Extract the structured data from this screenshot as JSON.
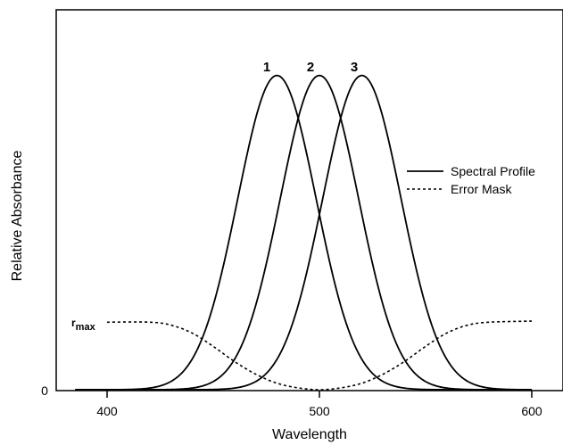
{
  "chart_data": {
    "type": "line",
    "xlabel": "Wavelength",
    "ylabel": "Relative Absorbance",
    "xlim": [
      380,
      630
    ],
    "ylim": [
      0,
      1.0
    ],
    "xticks": [
      400,
      500,
      600
    ],
    "xtick_labels": [
      "400",
      "500",
      "600"
    ],
    "yticks": [
      0
    ],
    "ytick_labels": [
      "0"
    ],
    "grid": false,
    "legend_position": "right",
    "legend": [
      {
        "label": "Spectral Profile",
        "style": "solid"
      },
      {
        "label": "Error Mask",
        "style": "dotted"
      }
    ],
    "series": [
      {
        "name": "1",
        "style": "solid",
        "peak_x": 480,
        "peak_y": 0.87,
        "sigma": 18.5,
        "x_range": [
          385,
          600
        ]
      },
      {
        "name": "2",
        "style": "solid",
        "peak_x": 500,
        "peak_y": 0.87,
        "sigma": 18.5,
        "x_range": [
          385,
          600
        ]
      },
      {
        "name": "3",
        "style": "solid",
        "peak_x": 520,
        "peak_y": 0.87,
        "sigma": 18.5,
        "x_range": [
          385,
          600
        ]
      },
      {
        "style": "dotted",
        "x": [
          400,
          420,
          430,
          440,
          450,
          460,
          470,
          480,
          490,
          500,
          510,
          520,
          530,
          540,
          550,
          560,
          570,
          580,
          600
        ],
        "y": [
          0.187,
          0.187,
          0.179,
          0.157,
          0.12,
          0.078,
          0.043,
          0.018,
          0.005,
          0.0,
          0.005,
          0.018,
          0.043,
          0.078,
          0.12,
          0.157,
          0.179,
          0.187,
          0.19
        ]
      }
    ],
    "annotations": {
      "peak_labels": [
        "1",
        "2",
        "3"
      ],
      "rmax_main": "r",
      "rmax_sub": "max",
      "rmax_value": 0.187
    }
  }
}
